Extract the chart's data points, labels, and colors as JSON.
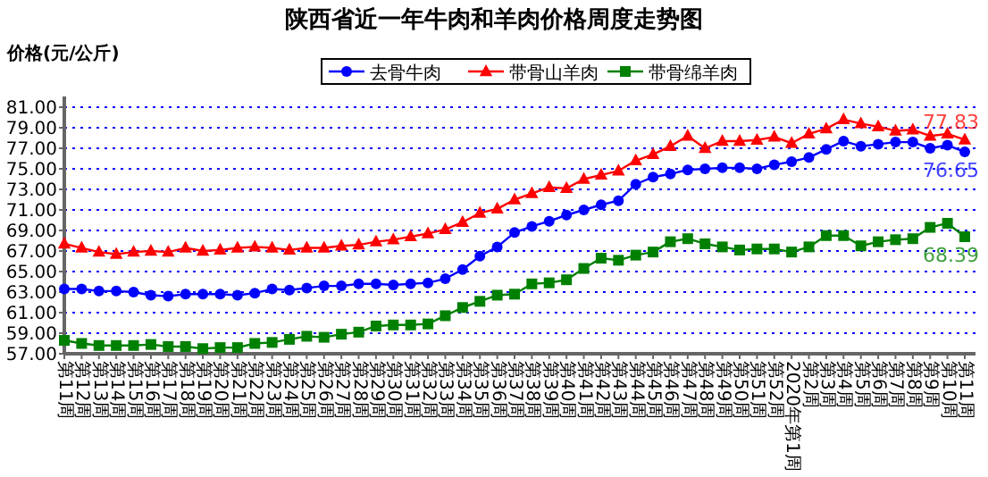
{
  "chart_data": {
    "type": "line",
    "title": "陕西省近一年牛肉和羊肉价格周度走势图",
    "ylabel": "价格(元/公斤)",
    "categories": [
      "第11周",
      "第12周",
      "第13周",
      "第14周",
      "第15周",
      "第16周",
      "第17周",
      "第18周",
      "第19周",
      "第20周",
      "第21周",
      "第22周",
      "第23周",
      "第24周",
      "第25周",
      "第26周",
      "第27周",
      "第28周",
      "第29周",
      "第30周",
      "第31周",
      "第32周",
      "第33周",
      "第34周",
      "第35周",
      "第36周",
      "第37周",
      "第38周",
      "第39周",
      "第40周",
      "第41周",
      "第42周",
      "第43周",
      "第44周",
      "第45周",
      "第46周",
      "第47周",
      "第48周",
      "第49周",
      "第50周",
      "第51周",
      "第52周",
      "2020年第1周",
      "第2周",
      "第3周",
      "第4周",
      "第5周",
      "第6周",
      "第7周",
      "第8周",
      "第9周",
      "第10周",
      "第11周"
    ],
    "series": [
      {
        "name": "去骨牛肉",
        "color": "#0000ff",
        "marker": "circle",
        "values": [
          63.3,
          63.3,
          63.1,
          63.1,
          63.0,
          62.7,
          62.6,
          62.8,
          62.8,
          62.8,
          62.7,
          62.9,
          63.3,
          63.2,
          63.4,
          63.6,
          63.6,
          63.8,
          63.8,
          63.7,
          63.8,
          63.9,
          64.3,
          65.2,
          66.5,
          67.4,
          68.8,
          69.4,
          69.9,
          70.5,
          71.0,
          71.5,
          71.9,
          73.5,
          74.2,
          74.5,
          74.9,
          75.0,
          75.1,
          75.1,
          75.0,
          75.4,
          75.7,
          76.1,
          76.9,
          77.7,
          77.2,
          77.4,
          77.6,
          77.6,
          77.0,
          77.3,
          76.65
        ],
        "value_labels": [
          null,
          null,
          null,
          null,
          null,
          null,
          null,
          null,
          null,
          null,
          null,
          null,
          null,
          null,
          null,
          null,
          null,
          null,
          null,
          null,
          null,
          null,
          null,
          null,
          null,
          null,
          null,
          null,
          null,
          null,
          null,
          null,
          null,
          null,
          null,
          null,
          null,
          null,
          null,
          null,
          null,
          null,
          null,
          null,
          null,
          null,
          null,
          null,
          null,
          null,
          null,
          null,
          "76.65"
        ]
      },
      {
        "name": "带骨山羊肉",
        "color": "#ff0000",
        "marker": "triangle",
        "values": [
          67.7,
          67.3,
          66.9,
          66.7,
          66.9,
          67.0,
          66.9,
          67.3,
          67.0,
          67.1,
          67.3,
          67.4,
          67.3,
          67.1,
          67.3,
          67.3,
          67.5,
          67.6,
          67.9,
          68.1,
          68.4,
          68.7,
          69.1,
          69.8,
          70.7,
          71.1,
          72.0,
          72.6,
          73.2,
          73.1,
          74.0,
          74.4,
          74.8,
          75.8,
          76.4,
          77.2,
          78.2,
          77.0,
          77.7,
          77.7,
          77.8,
          78.1,
          77.5,
          78.4,
          78.9,
          79.8,
          79.4,
          79.1,
          78.7,
          78.8,
          78.2,
          78.4,
          77.83
        ],
        "value_labels": [
          null,
          null,
          null,
          null,
          null,
          null,
          null,
          null,
          null,
          null,
          null,
          null,
          null,
          null,
          null,
          null,
          null,
          null,
          null,
          null,
          null,
          null,
          null,
          null,
          null,
          null,
          null,
          null,
          null,
          null,
          null,
          null,
          null,
          null,
          null,
          null,
          null,
          null,
          null,
          null,
          null,
          null,
          null,
          null,
          null,
          null,
          null,
          null,
          null,
          null,
          null,
          null,
          "77.83"
        ]
      },
      {
        "name": "带骨绵羊肉",
        "color": "#008000",
        "marker": "square",
        "values": [
          58.3,
          58.0,
          57.8,
          57.8,
          57.8,
          57.9,
          57.7,
          57.7,
          57.5,
          57.6,
          57.6,
          58.0,
          58.1,
          58.4,
          58.7,
          58.6,
          58.9,
          59.1,
          59.7,
          59.8,
          59.8,
          59.9,
          60.7,
          61.5,
          62.1,
          62.7,
          62.8,
          63.8,
          63.9,
          64.2,
          65.3,
          66.3,
          66.1,
          66.6,
          66.9,
          67.9,
          68.2,
          67.7,
          67.4,
          67.1,
          67.2,
          67.2,
          66.9,
          67.4,
          68.5,
          68.5,
          67.5,
          67.9,
          68.1,
          68.2,
          69.3,
          69.7,
          68.39
        ],
        "value_labels": [
          null,
          null,
          null,
          null,
          null,
          null,
          null,
          null,
          null,
          null,
          null,
          null,
          null,
          null,
          null,
          null,
          null,
          null,
          null,
          null,
          null,
          null,
          null,
          null,
          null,
          null,
          null,
          null,
          null,
          null,
          null,
          null,
          null,
          null,
          null,
          null,
          null,
          null,
          null,
          null,
          null,
          null,
          null,
          null,
          null,
          null,
          null,
          null,
          null,
          null,
          null,
          null,
          "68.39"
        ]
      }
    ],
    "ylim": [
      57,
      81
    ],
    "yticks": [
      {
        "value": 57,
        "label": "57.00"
      },
      {
        "value": 59,
        "label": "59.00"
      },
      {
        "value": 61,
        "label": "61.00"
      },
      {
        "value": 63,
        "label": "63.00"
      },
      {
        "value": 65,
        "label": "65.00"
      },
      {
        "value": 67,
        "label": "67.00"
      },
      {
        "value": 69,
        "label": "69.00"
      },
      {
        "value": 71,
        "label": "71.00"
      },
      {
        "value": 73,
        "label": "73.00"
      },
      {
        "value": 75,
        "label": "75.00"
      },
      {
        "value": 77,
        "label": "77.00"
      },
      {
        "value": 79,
        "label": "79.00"
      },
      {
        "value": 81,
        "label": "81.00"
      }
    ],
    "grid": "y",
    "legend": "top right",
    "line_style": "solid"
  }
}
